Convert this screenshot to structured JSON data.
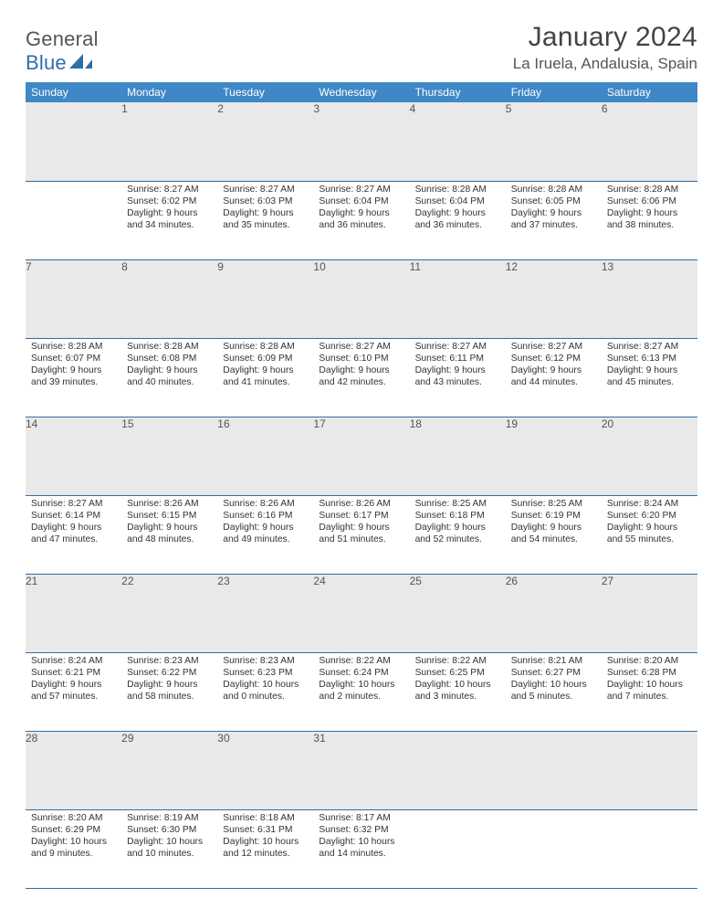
{
  "logo": {
    "text_a": "General",
    "text_b": "Blue"
  },
  "title": {
    "month": "January 2024",
    "location": "La Iruela, Andalusia, Spain"
  },
  "colors": {
    "header_bg": "#3f87c6",
    "header_text": "#ffffff",
    "daynum_bg": "#e9e9e9",
    "border": "#2f6fa8",
    "logo_blue": "#2f6fa8"
  },
  "weekdays": [
    "Sunday",
    "Monday",
    "Tuesday",
    "Wednesday",
    "Thursday",
    "Friday",
    "Saturday"
  ],
  "weeks": [
    [
      {
        "n": "",
        "sunrise": "",
        "sunset": "",
        "daylight": ""
      },
      {
        "n": "1",
        "sunrise": "Sunrise: 8:27 AM",
        "sunset": "Sunset: 6:02 PM",
        "daylight": "Daylight: 9 hours and 34 minutes."
      },
      {
        "n": "2",
        "sunrise": "Sunrise: 8:27 AM",
        "sunset": "Sunset: 6:03 PM",
        "daylight": "Daylight: 9 hours and 35 minutes."
      },
      {
        "n": "3",
        "sunrise": "Sunrise: 8:27 AM",
        "sunset": "Sunset: 6:04 PM",
        "daylight": "Daylight: 9 hours and 36 minutes."
      },
      {
        "n": "4",
        "sunrise": "Sunrise: 8:28 AM",
        "sunset": "Sunset: 6:04 PM",
        "daylight": "Daylight: 9 hours and 36 minutes."
      },
      {
        "n": "5",
        "sunrise": "Sunrise: 8:28 AM",
        "sunset": "Sunset: 6:05 PM",
        "daylight": "Daylight: 9 hours and 37 minutes."
      },
      {
        "n": "6",
        "sunrise": "Sunrise: 8:28 AM",
        "sunset": "Sunset: 6:06 PM",
        "daylight": "Daylight: 9 hours and 38 minutes."
      }
    ],
    [
      {
        "n": "7",
        "sunrise": "Sunrise: 8:28 AM",
        "sunset": "Sunset: 6:07 PM",
        "daylight": "Daylight: 9 hours and 39 minutes."
      },
      {
        "n": "8",
        "sunrise": "Sunrise: 8:28 AM",
        "sunset": "Sunset: 6:08 PM",
        "daylight": "Daylight: 9 hours and 40 minutes."
      },
      {
        "n": "9",
        "sunrise": "Sunrise: 8:28 AM",
        "sunset": "Sunset: 6:09 PM",
        "daylight": "Daylight: 9 hours and 41 minutes."
      },
      {
        "n": "10",
        "sunrise": "Sunrise: 8:27 AM",
        "sunset": "Sunset: 6:10 PM",
        "daylight": "Daylight: 9 hours and 42 minutes."
      },
      {
        "n": "11",
        "sunrise": "Sunrise: 8:27 AM",
        "sunset": "Sunset: 6:11 PM",
        "daylight": "Daylight: 9 hours and 43 minutes."
      },
      {
        "n": "12",
        "sunrise": "Sunrise: 8:27 AM",
        "sunset": "Sunset: 6:12 PM",
        "daylight": "Daylight: 9 hours and 44 minutes."
      },
      {
        "n": "13",
        "sunrise": "Sunrise: 8:27 AM",
        "sunset": "Sunset: 6:13 PM",
        "daylight": "Daylight: 9 hours and 45 minutes."
      }
    ],
    [
      {
        "n": "14",
        "sunrise": "Sunrise: 8:27 AM",
        "sunset": "Sunset: 6:14 PM",
        "daylight": "Daylight: 9 hours and 47 minutes."
      },
      {
        "n": "15",
        "sunrise": "Sunrise: 8:26 AM",
        "sunset": "Sunset: 6:15 PM",
        "daylight": "Daylight: 9 hours and 48 minutes."
      },
      {
        "n": "16",
        "sunrise": "Sunrise: 8:26 AM",
        "sunset": "Sunset: 6:16 PM",
        "daylight": "Daylight: 9 hours and 49 minutes."
      },
      {
        "n": "17",
        "sunrise": "Sunrise: 8:26 AM",
        "sunset": "Sunset: 6:17 PM",
        "daylight": "Daylight: 9 hours and 51 minutes."
      },
      {
        "n": "18",
        "sunrise": "Sunrise: 8:25 AM",
        "sunset": "Sunset: 6:18 PM",
        "daylight": "Daylight: 9 hours and 52 minutes."
      },
      {
        "n": "19",
        "sunrise": "Sunrise: 8:25 AM",
        "sunset": "Sunset: 6:19 PM",
        "daylight": "Daylight: 9 hours and 54 minutes."
      },
      {
        "n": "20",
        "sunrise": "Sunrise: 8:24 AM",
        "sunset": "Sunset: 6:20 PM",
        "daylight": "Daylight: 9 hours and 55 minutes."
      }
    ],
    [
      {
        "n": "21",
        "sunrise": "Sunrise: 8:24 AM",
        "sunset": "Sunset: 6:21 PM",
        "daylight": "Daylight: 9 hours and 57 minutes."
      },
      {
        "n": "22",
        "sunrise": "Sunrise: 8:23 AM",
        "sunset": "Sunset: 6:22 PM",
        "daylight": "Daylight: 9 hours and 58 minutes."
      },
      {
        "n": "23",
        "sunrise": "Sunrise: 8:23 AM",
        "sunset": "Sunset: 6:23 PM",
        "daylight": "Daylight: 10 hours and 0 minutes."
      },
      {
        "n": "24",
        "sunrise": "Sunrise: 8:22 AM",
        "sunset": "Sunset: 6:24 PM",
        "daylight": "Daylight: 10 hours and 2 minutes."
      },
      {
        "n": "25",
        "sunrise": "Sunrise: 8:22 AM",
        "sunset": "Sunset: 6:25 PM",
        "daylight": "Daylight: 10 hours and 3 minutes."
      },
      {
        "n": "26",
        "sunrise": "Sunrise: 8:21 AM",
        "sunset": "Sunset: 6:27 PM",
        "daylight": "Daylight: 10 hours and 5 minutes."
      },
      {
        "n": "27",
        "sunrise": "Sunrise: 8:20 AM",
        "sunset": "Sunset: 6:28 PM",
        "daylight": "Daylight: 10 hours and 7 minutes."
      }
    ],
    [
      {
        "n": "28",
        "sunrise": "Sunrise: 8:20 AM",
        "sunset": "Sunset: 6:29 PM",
        "daylight": "Daylight: 10 hours and 9 minutes."
      },
      {
        "n": "29",
        "sunrise": "Sunrise: 8:19 AM",
        "sunset": "Sunset: 6:30 PM",
        "daylight": "Daylight: 10 hours and 10 minutes."
      },
      {
        "n": "30",
        "sunrise": "Sunrise: 8:18 AM",
        "sunset": "Sunset: 6:31 PM",
        "daylight": "Daylight: 10 hours and 12 minutes."
      },
      {
        "n": "31",
        "sunrise": "Sunrise: 8:17 AM",
        "sunset": "Sunset: 6:32 PM",
        "daylight": "Daylight: 10 hours and 14 minutes."
      },
      {
        "n": "",
        "sunrise": "",
        "sunset": "",
        "daylight": ""
      },
      {
        "n": "",
        "sunrise": "",
        "sunset": "",
        "daylight": ""
      },
      {
        "n": "",
        "sunrise": "",
        "sunset": "",
        "daylight": ""
      }
    ]
  ]
}
